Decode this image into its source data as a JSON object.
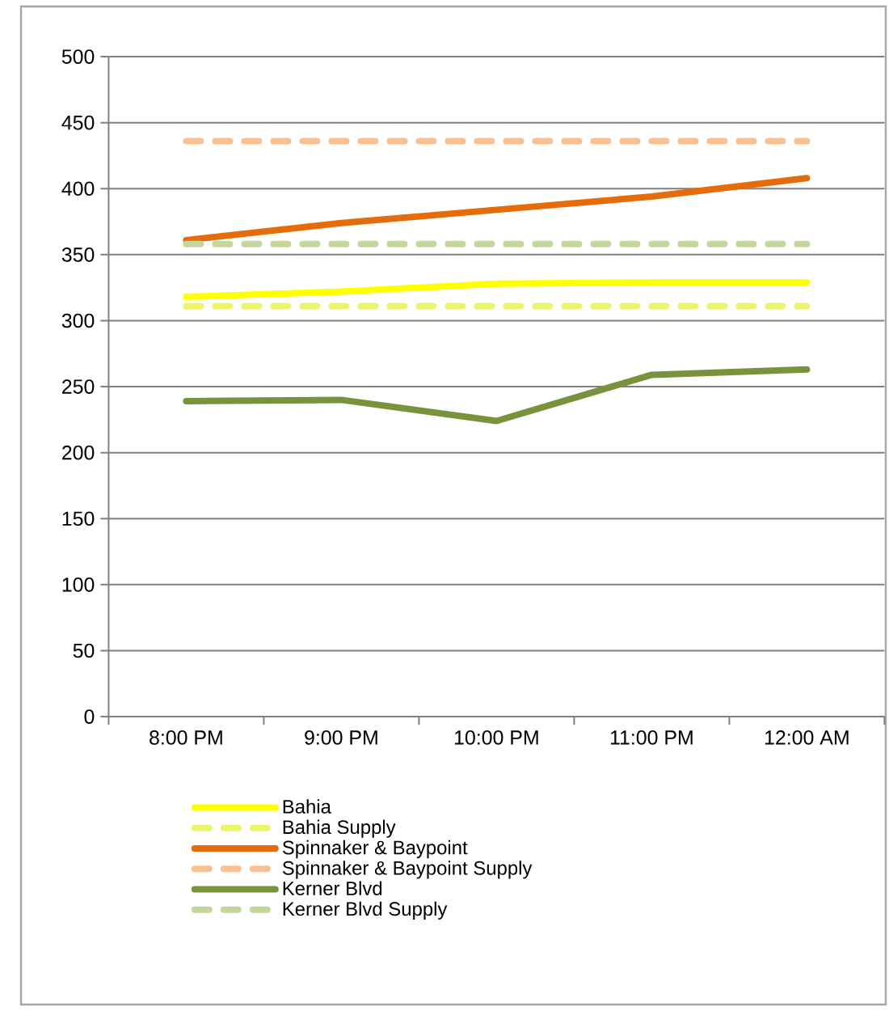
{
  "chart_data": {
    "type": "line",
    "categories": [
      "8:00 PM",
      "9:00 PM",
      "10:00 PM",
      "11:00 PM",
      "12:00 AM"
    ],
    "ylim": [
      0,
      500
    ],
    "yticks": [
      0,
      50,
      100,
      150,
      200,
      250,
      300,
      350,
      400,
      450,
      500
    ],
    "grid": "y",
    "legend": "bottom",
    "marker": "none",
    "series": [
      {
        "name": "Bahia",
        "color": "#ffff00",
        "line_style": "solid",
        "values": [
          318,
          322,
          328,
          329,
          329
        ]
      },
      {
        "name": "Bahia Supply",
        "color": "#ecf56a",
        "line_style": "dashed",
        "values": [
          311,
          311,
          311,
          311,
          311
        ]
      },
      {
        "name": "Spinnaker & Baypoint",
        "color": "#e46c0a",
        "line_style": "solid",
        "values": [
          361,
          374,
          384,
          394,
          408
        ]
      },
      {
        "name": "Spinnaker & Baypoint Supply",
        "color": "#fac090",
        "line_style": "dashed",
        "values": [
          436,
          436,
          436,
          436,
          436
        ]
      },
      {
        "name": "Kerner Blvd",
        "color": "#77933c",
        "line_style": "solid",
        "values": [
          239,
          240,
          224,
          259,
          263
        ]
      },
      {
        "name": "Kerner Blvd Supply",
        "color": "#c3d69b",
        "line_style": "dashed",
        "values": [
          358,
          358,
          358,
          358,
          358
        ]
      }
    ]
  }
}
